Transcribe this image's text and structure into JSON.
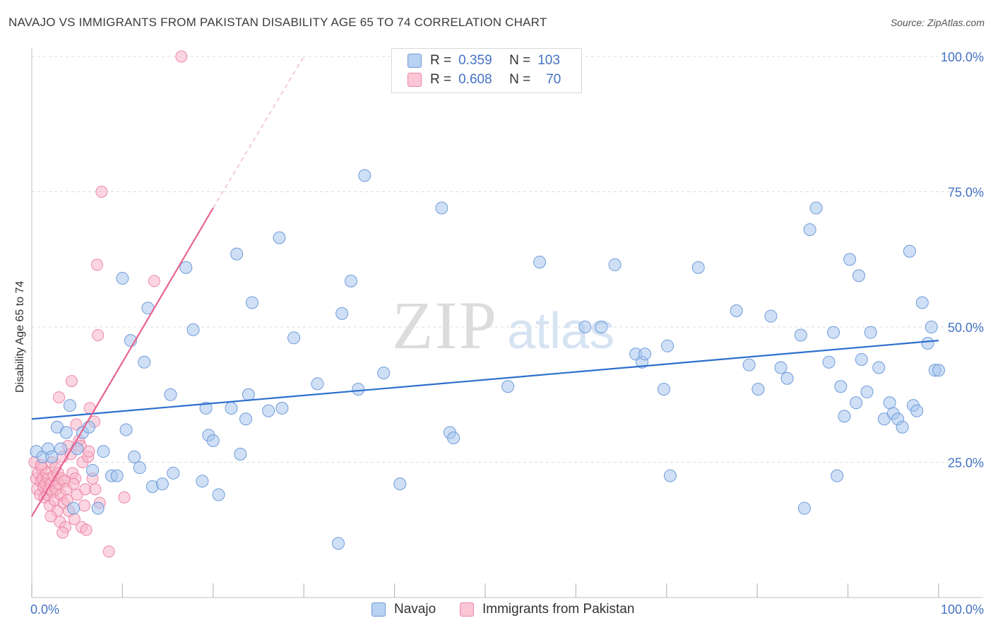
{
  "title": "NAVAJO VS IMMIGRANTS FROM PAKISTAN DISABILITY AGE 65 TO 74 CORRELATION CHART",
  "source": "Source: ZipAtlas.com",
  "watermark": {
    "zip": "ZIP",
    "atlas": "atlas"
  },
  "legend": {
    "rows": [
      {
        "r_label": "R =",
        "r_value": "0.359",
        "n_label": "N =",
        "n_value": "103"
      },
      {
        "r_label": "R =",
        "r_value": "0.608",
        "n_label": "N =",
        "n_value": "70"
      }
    ]
  },
  "colors": {
    "navajo_fill": "#a8c6ef",
    "navajo_stroke": "#6f9bd8",
    "navajo_line": "#2d6fcc",
    "pak_fill": "#f7b5c9",
    "pak_stroke": "#ec85a7",
    "pak_line": "#e8638f",
    "tick_text": "#4472c4"
  },
  "chart_data": {
    "type": "scatter",
    "title": "NAVAJO VS IMMIGRANTS FROM PAKISTAN DISABILITY AGE 65 TO 74 CORRELATION CHART",
    "xlabel": "",
    "ylabel": "Disability Age 65 to 74",
    "xlim": [
      0,
      100
    ],
    "ylim": [
      0,
      100
    ],
    "x_tick_labels": [
      "0.0%",
      "100.0%"
    ],
    "y_tick_labels": [
      "25.0%",
      "50.0%",
      "75.0%",
      "100.0%"
    ],
    "y_ticks": [
      25,
      50,
      75,
      100
    ],
    "series": [
      {
        "name": "Navajo",
        "R": 0.359,
        "N": 103,
        "trend": {
          "x": [
            0,
            100
          ],
          "y": [
            33,
            47.5
          ]
        },
        "points": [
          [
            0.5,
            27
          ],
          [
            1.2,
            26
          ],
          [
            1.8,
            27.5
          ],
          [
            2.2,
            26
          ],
          [
            2.8,
            31.5
          ],
          [
            3.2,
            27.5
          ],
          [
            3.8,
            30.5
          ],
          [
            4.2,
            35.5
          ],
          [
            4.6,
            16.5
          ],
          [
            5.0,
            27.5
          ],
          [
            5.6,
            30.5
          ],
          [
            6.3,
            31.5
          ],
          [
            6.7,
            23.5
          ],
          [
            7.3,
            16.5
          ],
          [
            7.9,
            27
          ],
          [
            8.8,
            22.5
          ],
          [
            9.4,
            22.5
          ],
          [
            10.0,
            59
          ],
          [
            10.4,
            31
          ],
          [
            10.9,
            47.5
          ],
          [
            11.3,
            26
          ],
          [
            11.9,
            24
          ],
          [
            12.4,
            43.5
          ],
          [
            12.8,
            53.5
          ],
          [
            13.3,
            20.5
          ],
          [
            14.4,
            21
          ],
          [
            15.3,
            37.5
          ],
          [
            15.6,
            23
          ],
          [
            17.0,
            61
          ],
          [
            17.8,
            49.5
          ],
          [
            18.8,
            21.5
          ],
          [
            19.2,
            35
          ],
          [
            19.5,
            30
          ],
          [
            20.0,
            29
          ],
          [
            20.6,
            19
          ],
          [
            22.0,
            35
          ],
          [
            22.6,
            63.5
          ],
          [
            23.0,
            26.5
          ],
          [
            23.6,
            33
          ],
          [
            23.9,
            37.5
          ],
          [
            24.3,
            54.5
          ],
          [
            26.1,
            34.5
          ],
          [
            27.3,
            66.5
          ],
          [
            27.6,
            35
          ],
          [
            28.9,
            48
          ],
          [
            31.5,
            39.5
          ],
          [
            33.8,
            10
          ],
          [
            34.2,
            52.5
          ],
          [
            35.2,
            58.5
          ],
          [
            36.0,
            38.5
          ],
          [
            36.7,
            78
          ],
          [
            38.8,
            41.5
          ],
          [
            40.6,
            21
          ],
          [
            45.2,
            72
          ],
          [
            46.1,
            30.5
          ],
          [
            46.5,
            29.5
          ],
          [
            52.5,
            39
          ],
          [
            56.0,
            62
          ],
          [
            61.0,
            50
          ],
          [
            62.8,
            50
          ],
          [
            64.3,
            61.5
          ],
          [
            66.6,
            45
          ],
          [
            67.3,
            43.5
          ],
          [
            67.6,
            45
          ],
          [
            69.7,
            38.5
          ],
          [
            70.1,
            46.5
          ],
          [
            70.4,
            22.5
          ],
          [
            73.5,
            61
          ],
          [
            77.7,
            53
          ],
          [
            79.1,
            43
          ],
          [
            80.1,
            38.5
          ],
          [
            81.5,
            52
          ],
          [
            82.6,
            42.5
          ],
          [
            83.3,
            40.5
          ],
          [
            84.8,
            48.5
          ],
          [
            85.2,
            16.5
          ],
          [
            85.8,
            68
          ],
          [
            86.5,
            72
          ],
          [
            87.9,
            43.5
          ],
          [
            88.4,
            49
          ],
          [
            88.8,
            22.5
          ],
          [
            89.2,
            39
          ],
          [
            89.6,
            33.5
          ],
          [
            90.2,
            62.5
          ],
          [
            90.9,
            36
          ],
          [
            91.2,
            59.5
          ],
          [
            91.5,
            44
          ],
          [
            92.1,
            38
          ],
          [
            92.5,
            49
          ],
          [
            93.4,
            42.5
          ],
          [
            94.0,
            33
          ],
          [
            94.6,
            36
          ],
          [
            95.0,
            34
          ],
          [
            95.5,
            33
          ],
          [
            96.0,
            31.5
          ],
          [
            96.8,
            64
          ],
          [
            97.2,
            35.5
          ],
          [
            97.6,
            34.5
          ],
          [
            98.2,
            54.5
          ],
          [
            98.8,
            47
          ],
          [
            99.2,
            50
          ],
          [
            99.6,
            42
          ],
          [
            100.0,
            42
          ]
        ]
      },
      {
        "name": "Immigrants from Pakistan",
        "R": 0.608,
        "N": 70,
        "trend": {
          "x": [
            0,
            20
          ],
          "y": [
            15,
            72
          ]
        },
        "trend_extension": {
          "x": [
            20,
            30
          ],
          "y": [
            72,
            100
          ]
        },
        "points": [
          [
            0.3,
            25
          ],
          [
            0.5,
            22
          ],
          [
            0.6,
            20
          ],
          [
            0.7,
            23
          ],
          [
            0.9,
            19
          ],
          [
            1.0,
            21.5
          ],
          [
            1.1,
            24
          ],
          [
            1.2,
            22
          ],
          [
            1.3,
            20.5
          ],
          [
            1.4,
            18.5
          ],
          [
            1.5,
            21
          ],
          [
            1.6,
            23
          ],
          [
            1.7,
            19
          ],
          [
            1.8,
            22
          ],
          [
            1.9,
            20
          ],
          [
            2.0,
            17
          ],
          [
            2.1,
            21
          ],
          [
            2.2,
            25
          ],
          [
            2.3,
            19.5
          ],
          [
            2.4,
            22.5
          ],
          [
            2.5,
            18
          ],
          [
            2.6,
            24
          ],
          [
            2.7,
            20
          ],
          [
            2.8,
            16
          ],
          [
            2.9,
            23
          ],
          [
            3.0,
            21
          ],
          [
            3.1,
            14
          ],
          [
            3.2,
            19
          ],
          [
            3.3,
            22
          ],
          [
            3.4,
            26
          ],
          [
            3.5,
            17.5
          ],
          [
            3.6,
            21.5
          ],
          [
            3.7,
            13
          ],
          [
            3.8,
            20
          ],
          [
            3.9,
            18
          ],
          [
            4.0,
            28
          ],
          [
            4.1,
            16
          ],
          [
            4.3,
            26.5
          ],
          [
            4.4,
            40
          ],
          [
            4.5,
            23
          ],
          [
            4.7,
            14.5
          ],
          [
            4.8,
            22
          ],
          [
            4.9,
            32
          ],
          [
            5.0,
            19
          ],
          [
            5.2,
            29
          ],
          [
            5.4,
            28
          ],
          [
            5.5,
            13
          ],
          [
            5.6,
            25
          ],
          [
            5.8,
            17
          ],
          [
            5.9,
            20
          ],
          [
            6.0,
            12.5
          ],
          [
            6.2,
            26
          ],
          [
            6.4,
            35
          ],
          [
            6.7,
            22
          ],
          [
            6.9,
            32.5
          ],
          [
            7.0,
            20
          ],
          [
            7.2,
            61.5
          ],
          [
            7.3,
            48.5
          ],
          [
            7.5,
            17.5
          ],
          [
            7.7,
            75
          ],
          [
            3.0,
            37
          ],
          [
            3.4,
            12
          ],
          [
            8.5,
            8.5
          ],
          [
            10.2,
            18.5
          ],
          [
            13.5,
            58.5
          ],
          [
            16.5,
            100
          ],
          [
            2.1,
            15
          ],
          [
            1.0,
            24.5
          ],
          [
            4.6,
            21
          ],
          [
            6.3,
            27
          ]
        ]
      }
    ]
  },
  "bottom_legend": [
    "Navajo",
    "Immigrants from Pakistan"
  ]
}
